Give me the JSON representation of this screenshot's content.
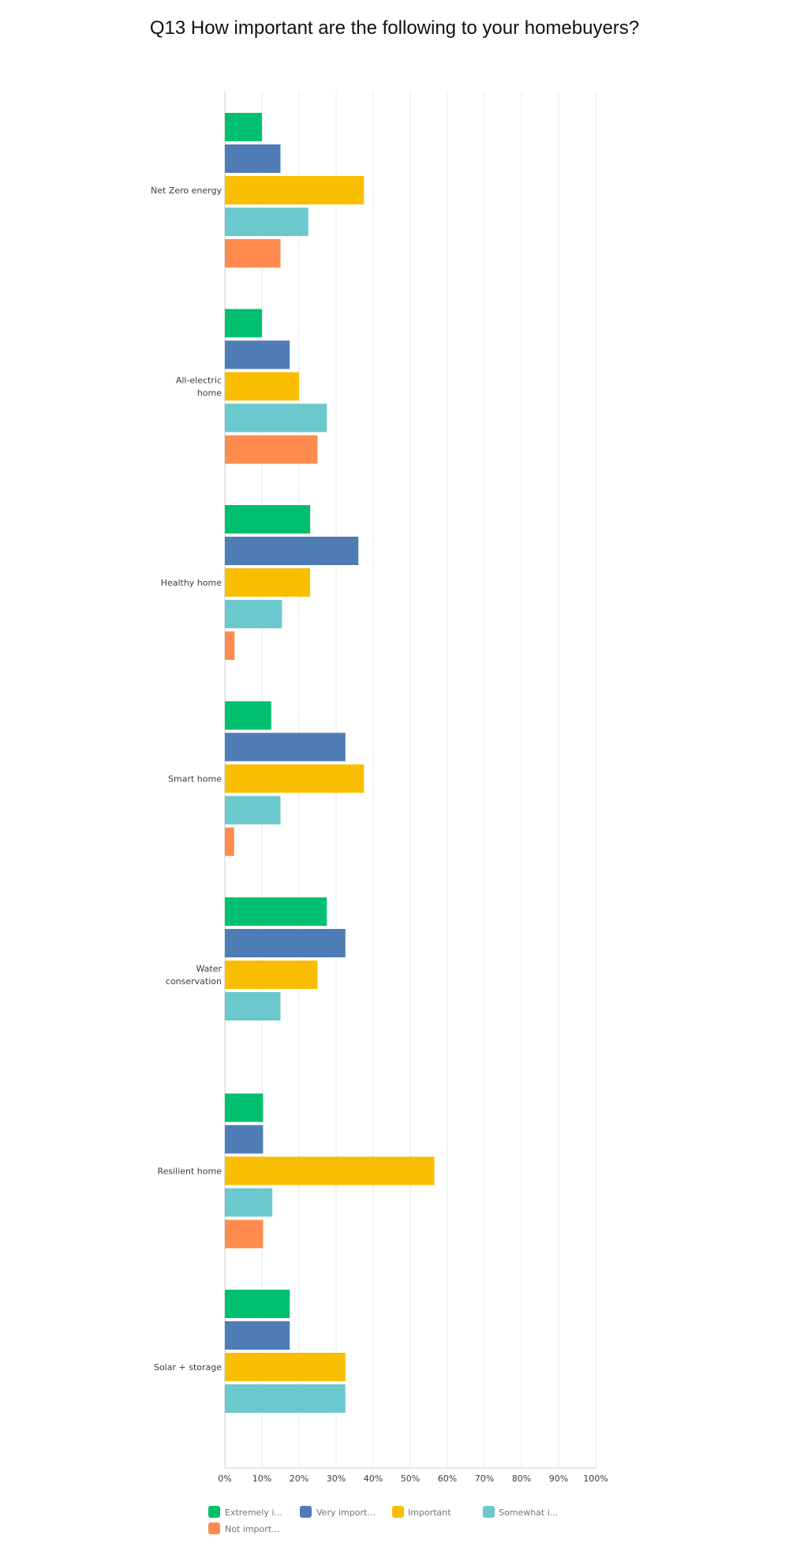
{
  "chart_data": {
    "type": "bar",
    "orientation": "horizontal",
    "title": "Q13 How important are the following to your homebuyers?",
    "categories": [
      "Net Zero energy",
      "All-electric home",
      "Healthy home",
      "Smart home",
      "Water conservation",
      "Resilient home",
      "Solar + storage"
    ],
    "category_lines": [
      [
        "Net Zero energy"
      ],
      [
        "All-electric",
        "home"
      ],
      [
        "Healthy home"
      ],
      [
        "Smart home"
      ],
      [
        "Water",
        "conservation"
      ],
      [
        "Resilient home"
      ],
      [
        "Solar + storage"
      ]
    ],
    "series": [
      {
        "name": "Extremely i...",
        "color": "#00bf6f",
        "values": [
          10,
          10,
          23,
          12.5,
          27.5,
          10.3,
          17.5
        ]
      },
      {
        "name": "Very import...",
        "color": "#507cb6",
        "values": [
          15,
          17.5,
          36,
          32.5,
          32.5,
          10.3,
          17.5
        ]
      },
      {
        "name": "Important",
        "color": "#f9be00",
        "values": [
          37.5,
          20,
          23,
          37.5,
          25,
          56.5,
          32.5
        ]
      },
      {
        "name": "Somewhat i...",
        "color": "#6bc8cd",
        "values": [
          22.5,
          27.5,
          15.4,
          15,
          15,
          12.8,
          32.5
        ]
      },
      {
        "name": "Not import...",
        "color": "#ff8b4f",
        "values": [
          15,
          25,
          2.6,
          2.5,
          0,
          10.3,
          0
        ]
      }
    ],
    "xlim": [
      0,
      100
    ],
    "xticks": [
      "0%",
      "10%",
      "20%",
      "30%",
      "40%",
      "50%",
      "60%",
      "70%",
      "80%",
      "90%",
      "100%"
    ],
    "grid": true,
    "legend_position": "bottom"
  }
}
